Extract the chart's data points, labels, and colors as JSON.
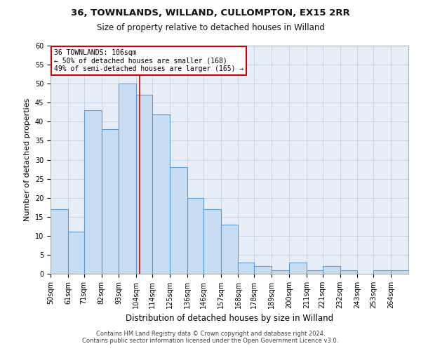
{
  "title1": "36, TOWNLANDS, WILLAND, CULLOMPTON, EX15 2RR",
  "title2": "Size of property relative to detached houses in Willand",
  "xlabel": "Distribution of detached houses by size in Willand",
  "ylabel": "Number of detached properties",
  "categories": [
    "50sqm",
    "61sqm",
    "71sqm",
    "82sqm",
    "93sqm",
    "104sqm",
    "114sqm",
    "125sqm",
    "136sqm",
    "146sqm",
    "157sqm",
    "168sqm",
    "178sqm",
    "189sqm",
    "200sqm",
    "211sqm",
    "221sqm",
    "232sqm",
    "243sqm",
    "253sqm",
    "264sqm"
  ],
  "hist_values": [
    17,
    11,
    43,
    38,
    50,
    47,
    42,
    28,
    20,
    17,
    13,
    3,
    2,
    1,
    3,
    1,
    2,
    1,
    0,
    1,
    1
  ],
  "bin_edges": [
    50,
    61,
    71,
    82,
    93,
    104,
    114,
    125,
    136,
    146,
    157,
    168,
    178,
    189,
    200,
    211,
    221,
    232,
    243,
    253,
    264,
    275
  ],
  "bar_color": "#c9ddf2",
  "bar_edge_color": "#5b9bd5",
  "vline_x": 106,
  "vline_color": "#cc0000",
  "ylim": [
    0,
    60
  ],
  "yticks": [
    0,
    5,
    10,
    15,
    20,
    25,
    30,
    35,
    40,
    45,
    50,
    55,
    60
  ],
  "annotation_title": "36 TOWNLANDS: 106sqm",
  "annotation_line1": "← 50% of detached houses are smaller (168)",
  "annotation_line2": "49% of semi-detached houses are larger (165) →",
  "annotation_box_color": "#ffffff",
  "annotation_box_edge": "#cc0000",
  "footer1": "Contains HM Land Registry data © Crown copyright and database right 2024.",
  "footer2": "Contains public sector information licensed under the Open Government Licence v3.0.",
  "grid_color": "#c8d4e8",
  "bg_color": "#e8eef8",
  "title1_fontsize": 9.5,
  "title2_fontsize": 8.5,
  "ylabel_fontsize": 8,
  "xlabel_fontsize": 8.5,
  "tick_fontsize": 7,
  "footer_fontsize": 6,
  "annot_fontsize": 7
}
